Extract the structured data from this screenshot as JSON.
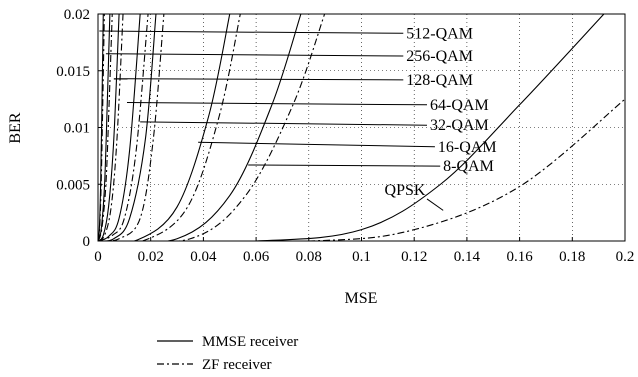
{
  "chart_data": {
    "type": "line",
    "xlabel": "MSE",
    "ylabel": "BER",
    "xlim": [
      0,
      0.2
    ],
    "ylim": [
      0,
      0.02
    ],
    "x_ticks": [
      "0",
      "0.02",
      "0.04",
      "0.06",
      "0.08",
      "0.1",
      "0.12",
      "0.14",
      "0.16",
      "0.18",
      "0.2"
    ],
    "y_ticks": [
      "0",
      "0.005",
      "0.01",
      "0.015",
      "0.02"
    ],
    "grid": "dotted",
    "legend_placement": "bottom-left",
    "legend": [
      {
        "label": "MMSE receiver",
        "style": "solid"
      },
      {
        "label": "ZF receiver",
        "style": "dashdot"
      }
    ],
    "modulations": [
      {
        "name": "512-QAM",
        "mmse": [
          [
            0,
            0
          ],
          [
            0.0005,
            0.001
          ],
          [
            0.001,
            0.005
          ],
          [
            0.0015,
            0.012
          ],
          [
            0.002,
            0.02
          ]
        ],
        "zf": [
          [
            0,
            0
          ],
          [
            0.0006,
            0.001
          ],
          [
            0.0012,
            0.005
          ],
          [
            0.0018,
            0.012
          ],
          [
            0.0024,
            0.02
          ]
        ],
        "label_xy": [
          0.117,
          0.0183
        ],
        "arrow_to": [
          0.0005,
          0.0185
        ]
      },
      {
        "name": "256-QAM",
        "mmse": [
          [
            0,
            0
          ],
          [
            0.0012,
            0.001
          ],
          [
            0.0025,
            0.005
          ],
          [
            0.0035,
            0.012
          ],
          [
            0.0045,
            0.02
          ]
        ],
        "zf": [
          [
            0,
            0
          ],
          [
            0.0014,
            0.001
          ],
          [
            0.003,
            0.005
          ],
          [
            0.0042,
            0.012
          ],
          [
            0.0054,
            0.02
          ]
        ],
        "label_xy": [
          0.117,
          0.0163
        ],
        "arrow_to": [
          0.003,
          0.0165
        ]
      },
      {
        "name": "128-QAM",
        "mmse": [
          [
            0,
            0
          ],
          [
            0.002,
            0.0005
          ],
          [
            0.004,
            0.003
          ],
          [
            0.006,
            0.009
          ],
          [
            0.008,
            0.02
          ]
        ],
        "zf": [
          [
            0,
            0
          ],
          [
            0.0025,
            0.0005
          ],
          [
            0.005,
            0.003
          ],
          [
            0.0072,
            0.009
          ],
          [
            0.0095,
            0.02
          ]
        ],
        "label_xy": [
          0.117,
          0.0142
        ],
        "arrow_to": [
          0.006,
          0.0143
        ]
      },
      {
        "name": "64-QAM",
        "mmse": [
          [
            0,
            0
          ],
          [
            0.004,
            0.0004
          ],
          [
            0.008,
            0.002
          ],
          [
            0.012,
            0.008
          ],
          [
            0.016,
            0.02
          ]
        ],
        "zf": [
          [
            0,
            0
          ],
          [
            0.0055,
            0.0005
          ],
          [
            0.01,
            0.002
          ],
          [
            0.0145,
            0.008
          ],
          [
            0.019,
            0.02
          ]
        ],
        "label_xy": [
          0.126,
          0.012
        ],
        "arrow_to": [
          0.011,
          0.0122
        ]
      },
      {
        "name": "32-QAM",
        "mmse": [
          [
            0,
            0
          ],
          [
            0.006,
            0.0002
          ],
          [
            0.012,
            0.002
          ],
          [
            0.018,
            0.009
          ],
          [
            0.022,
            0.02
          ]
        ],
        "zf": [
          [
            0,
            0
          ],
          [
            0.008,
            0.0002
          ],
          [
            0.016,
            0.002
          ],
          [
            0.021,
            0.009
          ],
          [
            0.025,
            0.02
          ]
        ],
        "label_xy": [
          0.126,
          0.0102
        ],
        "arrow_to": [
          0.016,
          0.0105
        ]
      },
      {
        "name": "16-QAM",
        "mmse": [
          [
            0,
            0
          ],
          [
            0.015,
            0.0001
          ],
          [
            0.03,
            0.003
          ],
          [
            0.042,
            0.011
          ],
          [
            0.05,
            0.02
          ]
        ],
        "zf": [
          [
            0,
            0
          ],
          [
            0.018,
            0.0001
          ],
          [
            0.034,
            0.003
          ],
          [
            0.046,
            0.011
          ],
          [
            0.054,
            0.02
          ]
        ],
        "label_xy": [
          0.129,
          0.0083
        ],
        "arrow_to": [
          0.038,
          0.0087
        ]
      },
      {
        "name": "8-QAM",
        "mmse": [
          [
            0,
            0
          ],
          [
            0.03,
            0.0002
          ],
          [
            0.05,
            0.004
          ],
          [
            0.066,
            0.012
          ],
          [
            0.077,
            0.02
          ]
        ],
        "zf": [
          [
            0,
            0
          ],
          [
            0.035,
            0.0002
          ],
          [
            0.056,
            0.004
          ],
          [
            0.074,
            0.012
          ],
          [
            0.086,
            0.02
          ]
        ],
        "label_xy": [
          0.131,
          0.0066
        ],
        "arrow_to": [
          0.057,
          0.0067
        ]
      },
      {
        "name": "QPSK",
        "mmse": [
          [
            0,
            0
          ],
          [
            0.06,
            0
          ],
          [
            0.1,
            0.001
          ],
          [
            0.13,
            0.005
          ],
          [
            0.16,
            0.012
          ],
          [
            0.192,
            0.02
          ]
        ],
        "zf": [
          [
            0,
            0
          ],
          [
            0.08,
            0
          ],
          [
            0.12,
            0.001
          ],
          [
            0.16,
            0.0048
          ],
          [
            0.2,
            0.0125
          ]
        ],
        "label_xy": [
          0.1165,
          0.0045
        ],
        "arrow_to": [
          0.131,
          0.0027
        ]
      }
    ]
  }
}
